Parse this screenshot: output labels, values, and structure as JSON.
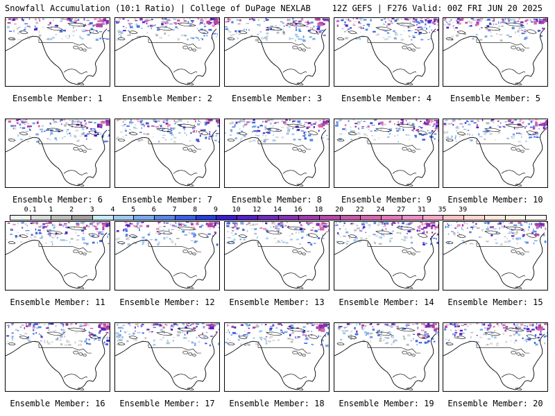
{
  "header": {
    "title": "Snowfall Accumulation (10:1 Ratio) | College of DuPage NEXLAB",
    "valid": "12Z GEFS | F276 Valid: 00Z FRI JUN 20 2025"
  },
  "members": [
    {
      "label": "Ensemble Member: 1"
    },
    {
      "label": "Ensemble Member: 2"
    },
    {
      "label": "Ensemble Member: 3"
    },
    {
      "label": "Ensemble Member: 4"
    },
    {
      "label": "Ensemble Member: 5"
    },
    {
      "label": "Ensemble Member: 6"
    },
    {
      "label": "Ensemble Member: 7"
    },
    {
      "label": "Ensemble Member: 8"
    },
    {
      "label": "Ensemble Member: 9"
    },
    {
      "label": "Ensemble Member: 10"
    },
    {
      "label": "Ensemble Member: 11"
    },
    {
      "label": "Ensemble Member: 12"
    },
    {
      "label": "Ensemble Member: 13"
    },
    {
      "label": "Ensemble Member: 14"
    },
    {
      "label": "Ensemble Member: 15"
    },
    {
      "label": "Ensemble Member: 16"
    },
    {
      "label": "Ensemble Member: 17"
    },
    {
      "label": "Ensemble Member: 18"
    },
    {
      "label": "Ensemble Member: 19"
    },
    {
      "label": "Ensemble Member: 20"
    }
  ],
  "colorbar": {
    "labels": [
      "0.1",
      "1",
      "2",
      "3",
      "4",
      "5",
      "6",
      "7",
      "8",
      "9",
      "10",
      "12",
      "14",
      "16",
      "18",
      "20",
      "22",
      "24",
      "27",
      "31",
      "35",
      "39"
    ],
    "colors": [
      "#f0f0f0",
      "#d9d9d9",
      "#bdbdbd",
      "#a0a0a0",
      "#c7e9f3",
      "#9ec9ef",
      "#7aa8ea",
      "#5a86e4",
      "#3b62dc",
      "#2a3fd1",
      "#3a1fc8",
      "#5522c0",
      "#6e2bb5",
      "#8532ac",
      "#9b3ba8",
      "#b048a6",
      "#c259a8",
      "#d267ae",
      "#de79b6",
      "#e98fc2",
      "#f2a8c6",
      "#f7c2c6",
      "#fbd7cf",
      "#fde8dc",
      "#fff3e8",
      "#fffaf4"
    ]
  }
}
